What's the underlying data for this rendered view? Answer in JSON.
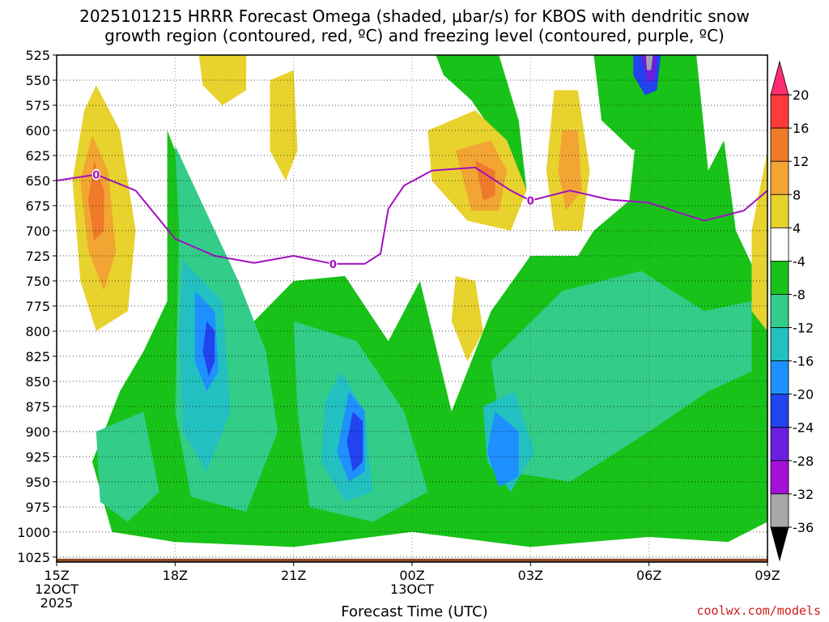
{
  "title_line1": "2025101215 HRRR Forecast Omega (shaded, μbar/s) for KBOS with dendritic snow",
  "title_line2": "growth region (contoured, red, ºC) and freezing level (contoured, purple, ºC)",
  "credit": "coolwx.com/models",
  "chart_data": {
    "type": "heatmap",
    "title": "2025101215 HRRR Forecast Omega (shaded, μbar/s) for KBOS with dendritic snow growth region (contoured, red, ºC) and freezing level (contoured, purple, ºC)",
    "xlabel": "Forecast Time (UTC)",
    "ylabel": "",
    "x_ticks": [
      {
        "hour": 0,
        "lines": [
          "15Z",
          "12OCT",
          "2025"
        ]
      },
      {
        "hour": 3,
        "lines": [
          "18Z"
        ]
      },
      {
        "hour": 6,
        "lines": [
          "21Z"
        ]
      },
      {
        "hour": 9,
        "lines": [
          "00Z",
          "13OCT"
        ]
      },
      {
        "hour": 12,
        "lines": [
          "03Z"
        ]
      },
      {
        "hour": 15,
        "lines": [
          "06Z"
        ]
      },
      {
        "hour": 18,
        "lines": [
          "09Z"
        ]
      }
    ],
    "xlim": [
      0,
      18
    ],
    "y_ticks": [
      525,
      550,
      575,
      600,
      625,
      650,
      675,
      700,
      725,
      750,
      775,
      800,
      825,
      850,
      875,
      900,
      925,
      950,
      975,
      1000,
      1025
    ],
    "ylim": [
      525,
      1030
    ],
    "colorbar": {
      "labels": [
        20,
        16,
        12,
        8,
        4,
        -4,
        -8,
        -12,
        -16,
        -20,
        -24,
        -28,
        -32,
        -36
      ],
      "bins": [
        {
          "color": "#ff2e70"
        },
        {
          "color": "#ff3a3a"
        },
        {
          "color": "#ee7a2a"
        },
        {
          "color": "#f2a533"
        },
        {
          "color": "#e8d22e"
        },
        {
          "color": "#ffffff"
        },
        {
          "color": "#19c219"
        },
        {
          "color": "#33cc88"
        },
        {
          "color": "#22c0c0"
        },
        {
          "color": "#1e90ff"
        },
        {
          "color": "#2244ee"
        },
        {
          "color": "#6a1ee0"
        },
        {
          "color": "#a310d8"
        },
        {
          "color": "#a8a8a8"
        },
        {
          "color": "#000000"
        }
      ]
    },
    "freezing_level": {
      "label": "0",
      "points": [
        [
          0,
          650
        ],
        [
          1,
          644
        ],
        [
          2,
          660
        ],
        [
          3,
          708
        ],
        [
          4,
          725
        ],
        [
          5,
          732
        ],
        [
          6,
          725
        ],
        [
          7,
          733
        ],
        [
          7.8,
          733
        ],
        [
          8.2,
          723
        ],
        [
          8.4,
          678
        ],
        [
          8.8,
          655
        ],
        [
          9.5,
          640
        ],
        [
          10.6,
          637
        ],
        [
          11.5,
          660
        ],
        [
          12,
          670
        ],
        [
          13,
          660
        ],
        [
          14,
          669
        ],
        [
          15,
          672
        ],
        [
          15.6,
          680
        ],
        [
          16.4,
          690
        ],
        [
          17.4,
          680
        ],
        [
          18,
          660
        ]
      ],
      "label_positions": [
        [
          1,
          644
        ],
        [
          7,
          733
        ],
        [
          12,
          670
        ]
      ]
    },
    "omega_regions": [
      {
        "name": "green-descent-main",
        "value": -6,
        "color": "#19c219",
        "points": [
          [
            1.4,
            1000
          ],
          [
            0.9,
            930
          ],
          [
            1.6,
            860
          ],
          [
            2.2,
            820
          ],
          [
            2.8,
            770
          ],
          [
            2.8,
            600
          ],
          [
            3.8,
            700
          ],
          [
            5,
            790
          ],
          [
            6,
            750
          ],
          [
            7.3,
            745
          ],
          [
            8.4,
            810
          ],
          [
            9.2,
            750
          ],
          [
            10,
            880
          ],
          [
            11,
            780
          ],
          [
            12,
            725
          ],
          [
            13.2,
            725
          ],
          [
            13.6,
            700
          ],
          [
            14.5,
            670
          ],
          [
            14.8,
            560
          ],
          [
            15.4,
            525
          ],
          [
            16.2,
            525
          ],
          [
            16.5,
            640
          ],
          [
            16.9,
            610
          ],
          [
            17.2,
            700
          ],
          [
            17.8,
            750
          ],
          [
            18,
            790
          ],
          [
            18,
            990
          ],
          [
            17,
            1010
          ],
          [
            15,
            1005
          ],
          [
            12,
            1015
          ],
          [
            9,
            1000
          ],
          [
            6,
            1015
          ],
          [
            3,
            1010
          ]
        ]
      },
      {
        "name": "green-upper-center",
        "value": -6,
        "color": "#19c219",
        "points": [
          [
            9.6,
            525
          ],
          [
            11.2,
            525
          ],
          [
            11.7,
            590
          ],
          [
            11.9,
            660
          ],
          [
            11.2,
            610
          ],
          [
            10.5,
            570
          ],
          [
            9.8,
            545
          ]
        ]
      },
      {
        "name": "green-upper-right",
        "value": -6,
        "color": "#19c219",
        "points": [
          [
            13.6,
            525
          ],
          [
            15.6,
            525
          ],
          [
            15.4,
            585
          ],
          [
            14.6,
            620
          ],
          [
            13.8,
            590
          ]
        ]
      },
      {
        "name": "teal-left",
        "value": -10,
        "color": "#33cc88",
        "points": [
          [
            3,
            615
          ],
          [
            4.6,
            750
          ],
          [
            5.3,
            820
          ],
          [
            5.6,
            900
          ],
          [
            4.8,
            980
          ],
          [
            3.4,
            965
          ],
          [
            3,
            880
          ],
          [
            3.1,
            700
          ]
        ]
      },
      {
        "name": "teal-center",
        "value": -10,
        "color": "#33cc88",
        "points": [
          [
            6,
            790
          ],
          [
            7.6,
            810
          ],
          [
            8.8,
            880
          ],
          [
            9.4,
            960
          ],
          [
            8,
            990
          ],
          [
            6.4,
            975
          ],
          [
            6.1,
            880
          ]
        ]
      },
      {
        "name": "teal-right",
        "value": -10,
        "color": "#33cc88",
        "points": [
          [
            11,
            830
          ],
          [
            12.8,
            760
          ],
          [
            14.8,
            740
          ],
          [
            16.4,
            780
          ],
          [
            17.6,
            770
          ],
          [
            17.6,
            840
          ],
          [
            16.5,
            860
          ],
          [
            15,
            900
          ],
          [
            13,
            950
          ],
          [
            11.4,
            940
          ]
        ]
      },
      {
        "name": "teal-bottom-left",
        "value": -10,
        "color": "#33cc88",
        "points": [
          [
            1.0,
            900
          ],
          [
            2.2,
            880
          ],
          [
            2.6,
            960
          ],
          [
            1.8,
            990
          ],
          [
            1.1,
            970
          ]
        ]
      },
      {
        "name": "cyan-left",
        "value": -14,
        "color": "#22c0c0",
        "points": [
          [
            3.2,
            730
          ],
          [
            4.2,
            770
          ],
          [
            4.4,
            880
          ],
          [
            3.8,
            940
          ],
          [
            3.2,
            900
          ],
          [
            3.1,
            800
          ]
        ]
      },
      {
        "name": "cyan-center",
        "value": -14,
        "color": "#22c0c0",
        "points": [
          [
            7.2,
            840
          ],
          [
            7.8,
            880
          ],
          [
            8,
            960
          ],
          [
            7.3,
            970
          ],
          [
            6.7,
            930
          ],
          [
            6.8,
            870
          ]
        ]
      },
      {
        "name": "cyan-right",
        "value": -14,
        "color": "#22c0c0",
        "points": [
          [
            10.8,
            875
          ],
          [
            11.6,
            860
          ],
          [
            12.1,
            920
          ],
          [
            11.5,
            960
          ],
          [
            10.9,
            930
          ]
        ]
      },
      {
        "name": "blue-left",
        "value": -18,
        "color": "#1e90ff",
        "points": [
          [
            3.5,
            760
          ],
          [
            4.0,
            780
          ],
          [
            4.1,
            840
          ],
          [
            3.8,
            860
          ],
          [
            3.5,
            830
          ]
        ]
      },
      {
        "name": "blue-center",
        "value": -18,
        "color": "#1e90ff",
        "points": [
          [
            7.4,
            860
          ],
          [
            7.8,
            880
          ],
          [
            7.8,
            940
          ],
          [
            7.4,
            950
          ],
          [
            7.1,
            920
          ]
        ]
      },
      {
        "name": "blue-right",
        "value": -18,
        "color": "#1e90ff",
        "points": [
          [
            11.1,
            880
          ],
          [
            11.7,
            900
          ],
          [
            11.7,
            945
          ],
          [
            11.2,
            955
          ],
          [
            10.9,
            920
          ]
        ]
      },
      {
        "name": "deep-blue-left",
        "value": -22,
        "color": "#2244ee",
        "points": [
          [
            3.8,
            790
          ],
          [
            4.0,
            800
          ],
          [
            4.0,
            830
          ],
          [
            3.85,
            845
          ],
          [
            3.7,
            820
          ]
        ]
      },
      {
        "name": "deep-blue-center",
        "value": -22,
        "color": "#2244ee",
        "points": [
          [
            7.5,
            880
          ],
          [
            7.75,
            890
          ],
          [
            7.75,
            930
          ],
          [
            7.5,
            940
          ],
          [
            7.35,
            910
          ]
        ]
      },
      {
        "name": "top-right-blue",
        "value": -22,
        "color": "#2244ee",
        "points": [
          [
            14.6,
            525
          ],
          [
            15.3,
            525
          ],
          [
            15.2,
            560
          ],
          [
            14.9,
            565
          ],
          [
            14.6,
            545
          ]
        ]
      },
      {
        "name": "top-right-purple",
        "value": -28,
        "color": "#6a1ee0",
        "points": [
          [
            14.8,
            525
          ],
          [
            15.2,
            525
          ],
          [
            15.15,
            550
          ],
          [
            14.95,
            552
          ]
        ]
      },
      {
        "name": "top-right-gray",
        "value": -34,
        "color": "#a8a8a8",
        "points": [
          [
            14.92,
            525
          ],
          [
            15.1,
            525
          ],
          [
            15.05,
            540
          ],
          [
            14.95,
            540
          ]
        ]
      },
      {
        "name": "yellow-left",
        "value": 6,
        "color": "#e8d22e",
        "points": [
          [
            1,
            555
          ],
          [
            1.6,
            600
          ],
          [
            2.0,
            700
          ],
          [
            1.8,
            780
          ],
          [
            1.0,
            800
          ],
          [
            0.6,
            750
          ],
          [
            0.4,
            650
          ],
          [
            0.7,
            580
          ]
        ]
      },
      {
        "name": "orange-left",
        "value": 10,
        "color": "#f2a533",
        "points": [
          [
            0.9,
            605
          ],
          [
            1.3,
            640
          ],
          [
            1.5,
            720
          ],
          [
            1.2,
            760
          ],
          [
            0.8,
            720
          ],
          [
            0.6,
            650
          ]
        ]
      },
      {
        "name": "orange2-left",
        "value": 14,
        "color": "#ee7a2a",
        "points": [
          [
            0.95,
            630
          ],
          [
            1.2,
            660
          ],
          [
            1.2,
            700
          ],
          [
            0.95,
            710
          ],
          [
            0.8,
            670
          ]
        ]
      },
      {
        "name": "yellow-center",
        "value": 6,
        "color": "#e8d22e",
        "points": [
          [
            9.4,
            600
          ],
          [
            10.6,
            580
          ],
          [
            11.4,
            610
          ],
          [
            11.9,
            660
          ],
          [
            11.5,
            700
          ],
          [
            10.4,
            690
          ],
          [
            9.5,
            650
          ]
        ]
      },
      {
        "name": "orange-center",
        "value": 10,
        "color": "#f2a533",
        "points": [
          [
            10.1,
            620
          ],
          [
            11,
            610
          ],
          [
            11.4,
            640
          ],
          [
            11.2,
            680
          ],
          [
            10.5,
            680
          ]
        ]
      },
      {
        "name": "orange2-center",
        "value": 14,
        "color": "#ee7a2a",
        "points": [
          [
            10.6,
            630
          ],
          [
            11.1,
            640
          ],
          [
            11.1,
            665
          ],
          [
            10.8,
            670
          ]
        ]
      },
      {
        "name": "yellow-center-right",
        "value": 6,
        "color": "#e8d22e",
        "points": [
          [
            12.6,
            560
          ],
          [
            13.2,
            560
          ],
          [
            13.5,
            640
          ],
          [
            13.3,
            700
          ],
          [
            12.6,
            700
          ],
          [
            12.4,
            640
          ]
        ]
      },
      {
        "name": "orange-center-right",
        "value": 10,
        "color": "#f2a533",
        "points": [
          [
            12.8,
            600
          ],
          [
            13.2,
            600
          ],
          [
            13.3,
            660
          ],
          [
            12.9,
            680
          ],
          [
            12.7,
            640
          ]
        ]
      },
      {
        "name": "yellow-small-center",
        "value": 6,
        "color": "#e8d22e",
        "points": [
          [
            10.1,
            745
          ],
          [
            10.6,
            750
          ],
          [
            10.8,
            800
          ],
          [
            10.4,
            830
          ],
          [
            10,
            790
          ]
        ]
      },
      {
        "name": "yellow-top-left",
        "value": 6,
        "color": "#e8d22e",
        "points": [
          [
            3.6,
            525
          ],
          [
            4.8,
            525
          ],
          [
            4.8,
            560
          ],
          [
            4.2,
            575
          ],
          [
            3.7,
            555
          ]
        ]
      },
      {
        "name": "yellow-top-mid",
        "value": 6,
        "color": "#e8d22e",
        "points": [
          [
            5.4,
            550
          ],
          [
            6,
            540
          ],
          [
            6.1,
            620
          ],
          [
            5.8,
            650
          ],
          [
            5.4,
            620
          ]
        ]
      },
      {
        "name": "yellow-right-edge",
        "value": 6,
        "color": "#e8d22e",
        "points": [
          [
            17.6,
            700
          ],
          [
            18,
            620
          ],
          [
            18,
            800
          ],
          [
            17.6,
            780
          ]
        ]
      }
    ]
  }
}
